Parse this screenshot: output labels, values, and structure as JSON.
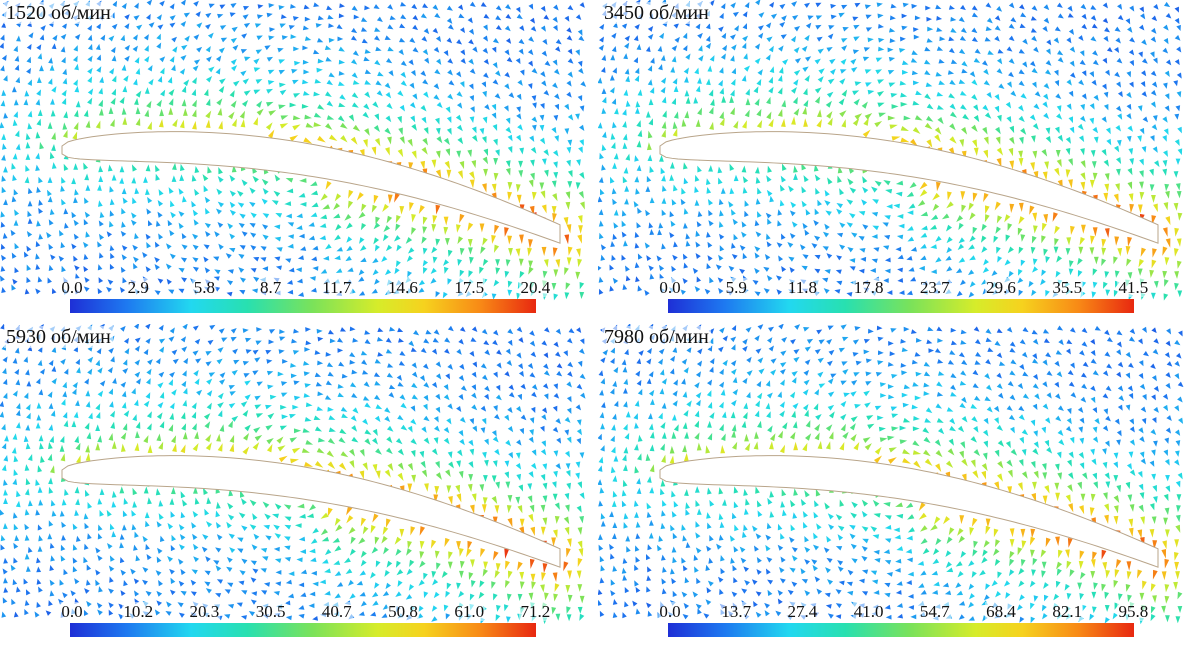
{
  "panels": [
    {
      "label": "1520 об/мин",
      "ticks": [
        "0.0",
        "2.9",
        "5.8",
        "8.7",
        "11.7",
        "14.6",
        "17.5",
        "20.4"
      ]
    },
    {
      "label": "3450 об/мин",
      "ticks": [
        "0.0",
        "5.9",
        "11.8",
        "17.8",
        "23.7",
        "29.6",
        "35.5",
        "41.5"
      ]
    },
    {
      "label": "5930 об/мин",
      "ticks": [
        "0.0",
        "10.2",
        "20.3",
        "30.5",
        "40.7",
        "50.8",
        "61.0",
        "71.2"
      ]
    },
    {
      "label": "7980 об/мин",
      "ticks": [
        "0.0",
        "13.7",
        "27.4",
        "41.0",
        "54.7",
        "68.4",
        "82.1",
        "95.8"
      ]
    }
  ],
  "colormap": [
    "#1e2fd6",
    "#1e78f0",
    "#22d8f0",
    "#28e0b0",
    "#7ae25a",
    "#d6ec2a",
    "#f6d21e",
    "#f88a16",
    "#e82810"
  ]
}
